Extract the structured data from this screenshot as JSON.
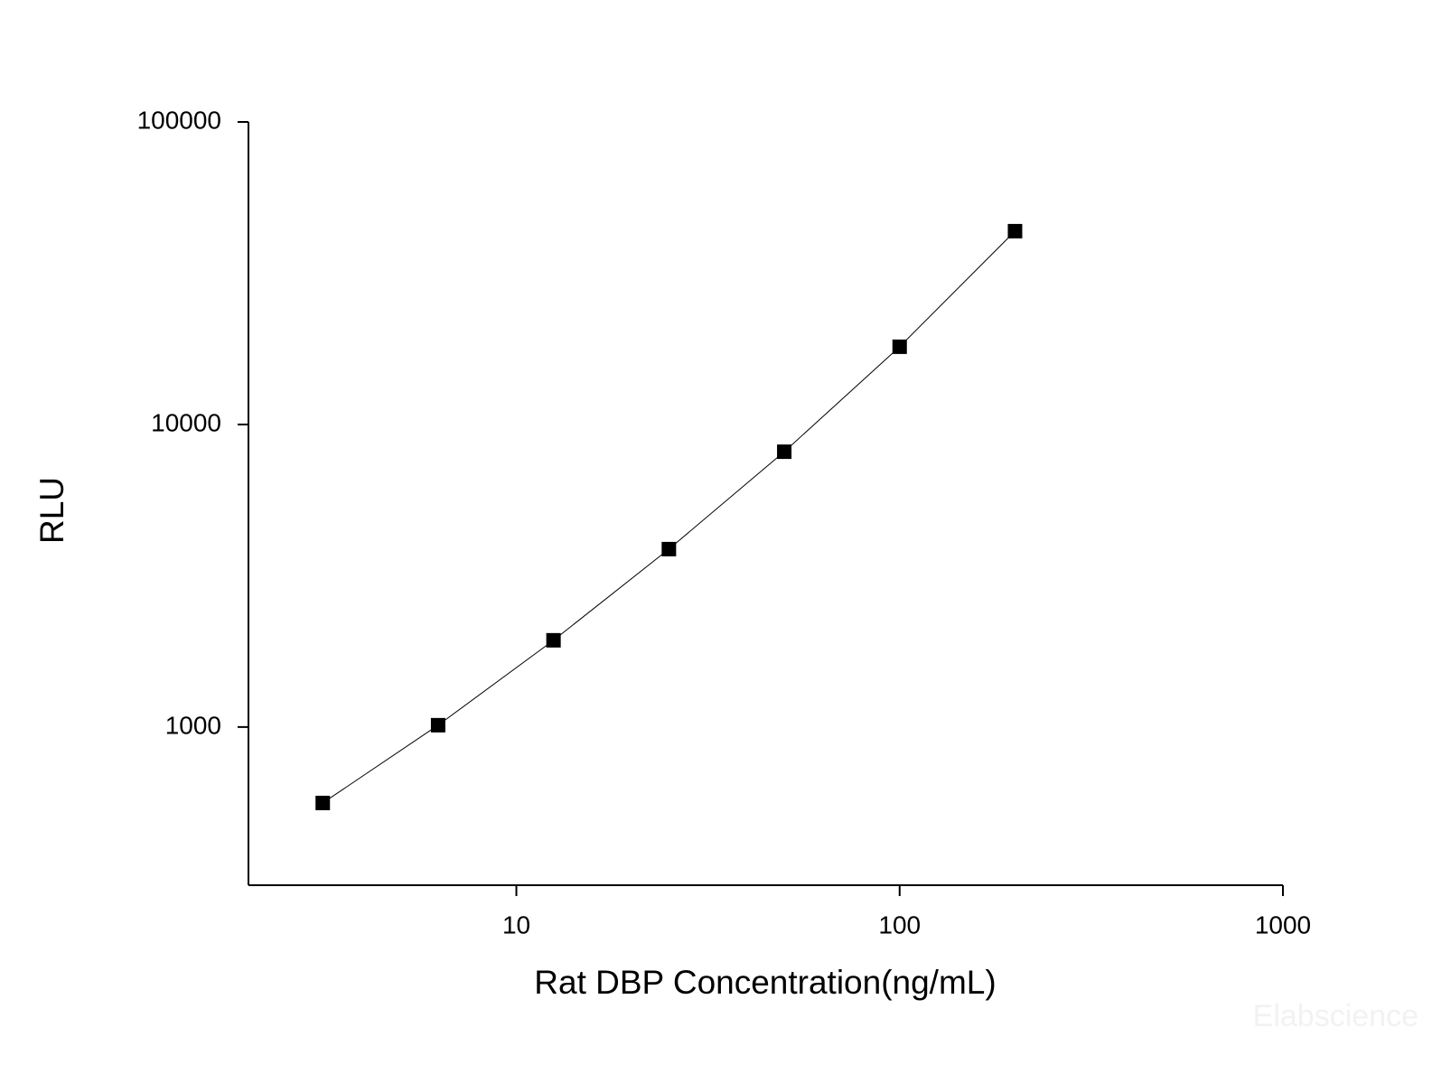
{
  "chart_data": {
    "type": "scatter",
    "x_label": "Rat DBP Concentration(ng/mL)",
    "y_label": "RLU",
    "watermark": "Elabscience",
    "x_log": true,
    "y_log": true,
    "xlim": [
      2,
      1000
    ],
    "ylim": [
      300,
      100000
    ],
    "xticks": [
      10,
      100,
      1000
    ],
    "yticks": [
      1000,
      10000,
      100000
    ],
    "line": true,
    "series": [
      {
        "color": "#000000",
        "x": [
          3.125,
          6.25,
          12.5,
          25,
          50,
          100,
          200
        ],
        "values": [
          561,
          1014,
          1935,
          3873,
          8128,
          18070,
          43550
        ]
      }
    ]
  }
}
